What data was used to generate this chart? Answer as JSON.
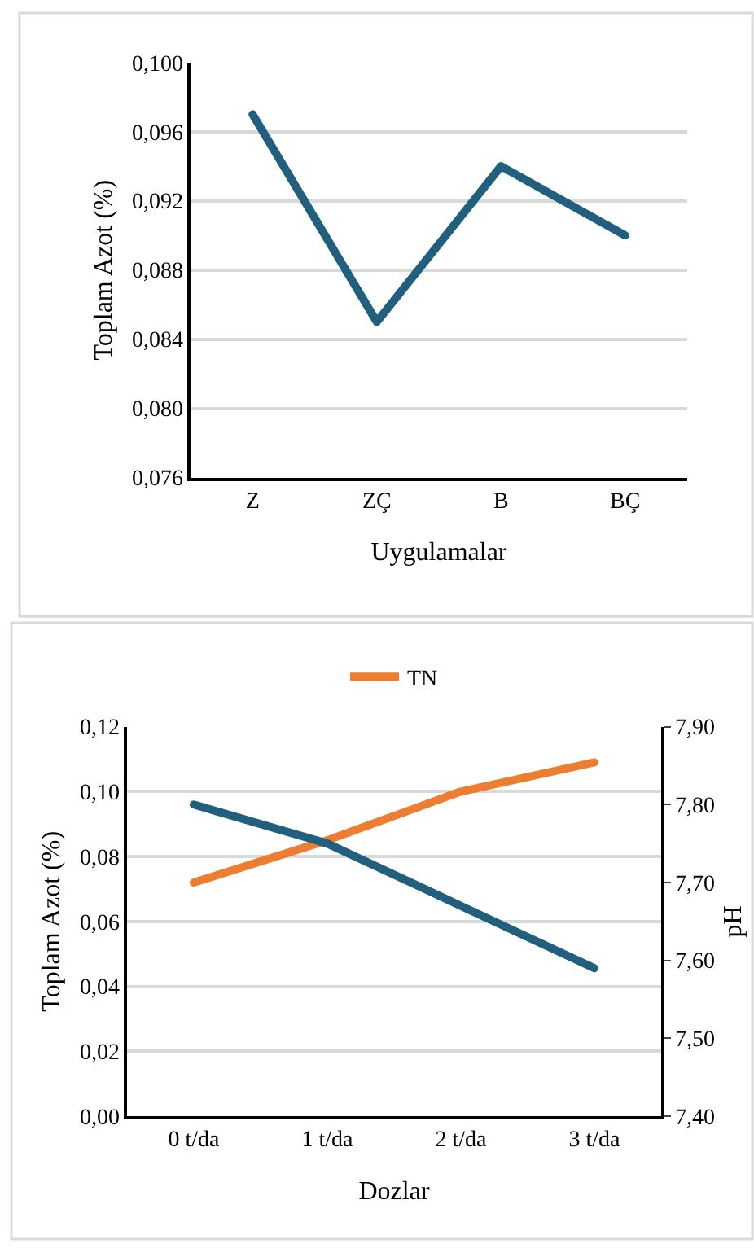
{
  "chart_data": [
    {
      "type": "line",
      "xlabel": "Uygulamalar",
      "ylabel": "Toplam Azot (%)",
      "categories": [
        "Z",
        "ZÇ",
        "B",
        "BÇ"
      ],
      "series": [
        {
          "color": "#215f7f",
          "values": [
            0.097,
            0.085,
            0.094,
            0.09
          ]
        }
      ],
      "ylim": [
        0.076,
        0.1
      ],
      "yticks": [
        {
          "value": 0.076,
          "label": "0,076"
        },
        {
          "value": 0.08,
          "label": "0,080"
        },
        {
          "value": 0.084,
          "label": "0,084"
        },
        {
          "value": 0.088,
          "label": "0,088"
        },
        {
          "value": 0.092,
          "label": "0,092"
        },
        {
          "value": 0.096,
          "label": "0,096"
        },
        {
          "value": 0.1,
          "label": "0,100"
        }
      ],
      "grid": "y",
      "legend": false
    },
    {
      "type": "line",
      "xlabel": "Dozlar",
      "ylabel": "Toplam Azot (%)",
      "y2label": "pH",
      "categories": [
        "0 t/da",
        "1 t/da",
        "2 t/da",
        "3 t/da"
      ],
      "series": [
        {
          "name": "TN",
          "color": "#ed7d31",
          "values": [
            0.072,
            0.085,
            0.1,
            0.109
          ]
        },
        {
          "color": "#215f7f",
          "axis": "y2",
          "values": [
            7.8,
            7.75,
            7.67,
            7.59
          ]
        }
      ],
      "ylim": [
        0,
        0.12
      ],
      "yticks": [
        {
          "value": 0,
          "label": "0,00"
        },
        {
          "value": 0.02,
          "label": "0,02"
        },
        {
          "value": 0.04,
          "label": "0,04"
        },
        {
          "value": 0.06,
          "label": "0,06"
        },
        {
          "value": 0.08,
          "label": "0,08"
        },
        {
          "value": 0.1,
          "label": "0,10"
        },
        {
          "value": 0.12,
          "label": "0,12"
        }
      ],
      "y2lim": [
        7.4,
        7.9
      ],
      "y2ticks": [
        {
          "value": 7.4,
          "label": "7,40"
        },
        {
          "value": 7.5,
          "label": "7,50"
        },
        {
          "value": 7.6,
          "label": "7,60"
        },
        {
          "value": 7.7,
          "label": "7,70"
        },
        {
          "value": 7.8,
          "label": "7,80"
        },
        {
          "value": 7.9,
          "label": "7,90"
        }
      ],
      "grid": "y",
      "legend": "top"
    }
  ]
}
